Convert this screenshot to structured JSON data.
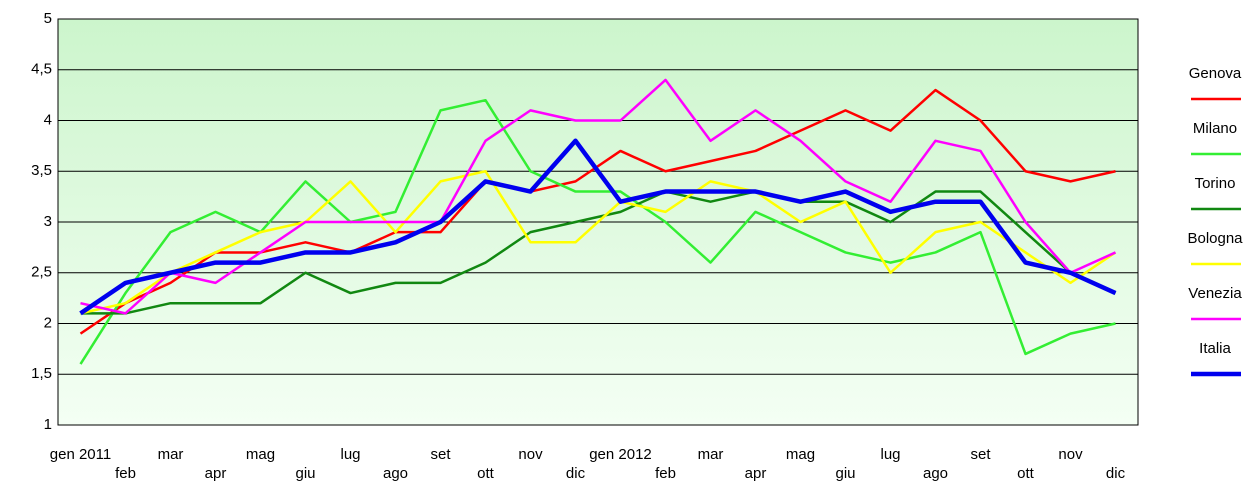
{
  "chart_data": {
    "type": "line",
    "categories": [
      "gen 2011",
      "feb",
      "mar",
      "apr",
      "mag",
      "giu",
      "lug",
      "ago",
      "set",
      "ott",
      "nov",
      "dic",
      "gen 2012",
      "feb",
      "mar",
      "apr",
      "mag",
      "giu",
      "lug",
      "ago",
      "set",
      "ott",
      "nov",
      "dic"
    ],
    "ylim": [
      1,
      5
    ],
    "yticks": [
      1,
      {
        "value": 1.5,
        "label": "1,5"
      },
      2,
      {
        "value": 2.5,
        "label": "2,5"
      },
      3,
      {
        "value": 3.5,
        "label": "3,5"
      },
      4,
      {
        "value": 4.5,
        "label": "4,5"
      },
      5
    ],
    "grid": true,
    "legend": "right",
    "series": [
      {
        "name": "Genova",
        "color": "#ff0000",
        "values": [
          1.9,
          2.2,
          2.4,
          2.7,
          2.7,
          2.8,
          2.7,
          2.9,
          2.9,
          3.4,
          3.3,
          3.4,
          3.7,
          3.5,
          3.6,
          3.7,
          3.9,
          4.1,
          3.9,
          4.3,
          4.0,
          3.5,
          3.4,
          3.5
        ]
      },
      {
        "name": "Milano",
        "color": "#33ee33",
        "values": [
          1.6,
          2.3,
          2.9,
          3.1,
          2.9,
          3.4,
          3.0,
          3.1,
          4.1,
          4.2,
          3.5,
          3.3,
          3.3,
          3.0,
          2.6,
          3.1,
          2.9,
          2.7,
          2.6,
          2.7,
          2.9,
          1.7,
          1.9,
          2.0
        ]
      },
      {
        "name": "Torino",
        "color": "#118811",
        "values": [
          2.1,
          2.1,
          2.2,
          2.2,
          2.2,
          2.5,
          2.3,
          2.4,
          2.4,
          2.6,
          2.9,
          3.0,
          3.1,
          3.3,
          3.2,
          3.3,
          3.2,
          3.2,
          3.0,
          3.3,
          3.3,
          2.9,
          2.5,
          2.3
        ]
      },
      {
        "name": "Bologna",
        "color": "#ffff00",
        "values": [
          2.1,
          2.2,
          2.5,
          2.7,
          2.9,
          3.0,
          3.4,
          2.9,
          3.4,
          3.5,
          2.8,
          2.8,
          3.2,
          3.1,
          3.4,
          3.3,
          3.0,
          3.2,
          2.5,
          2.9,
          3.0,
          2.7,
          2.4,
          2.7
        ]
      },
      {
        "name": "Venezia",
        "color": "#ff00ff",
        "values": [
          2.2,
          2.1,
          2.5,
          2.4,
          2.7,
          3.0,
          3.0,
          3.0,
          3.0,
          3.8,
          4.1,
          4.0,
          4.0,
          4.4,
          3.8,
          4.1,
          3.8,
          3.4,
          3.2,
          3.8,
          3.7,
          3.0,
          2.5,
          2.7
        ]
      },
      {
        "name": "Italia",
        "color": "#0000ee",
        "values": [
          2.1,
          2.4,
          2.5,
          2.6,
          2.6,
          2.7,
          2.7,
          2.8,
          3.0,
          3.4,
          3.3,
          3.8,
          3.2,
          3.3,
          3.3,
          3.3,
          3.2,
          3.3,
          3.1,
          3.2,
          3.2,
          2.6,
          2.5,
          2.3
        ]
      }
    ]
  }
}
